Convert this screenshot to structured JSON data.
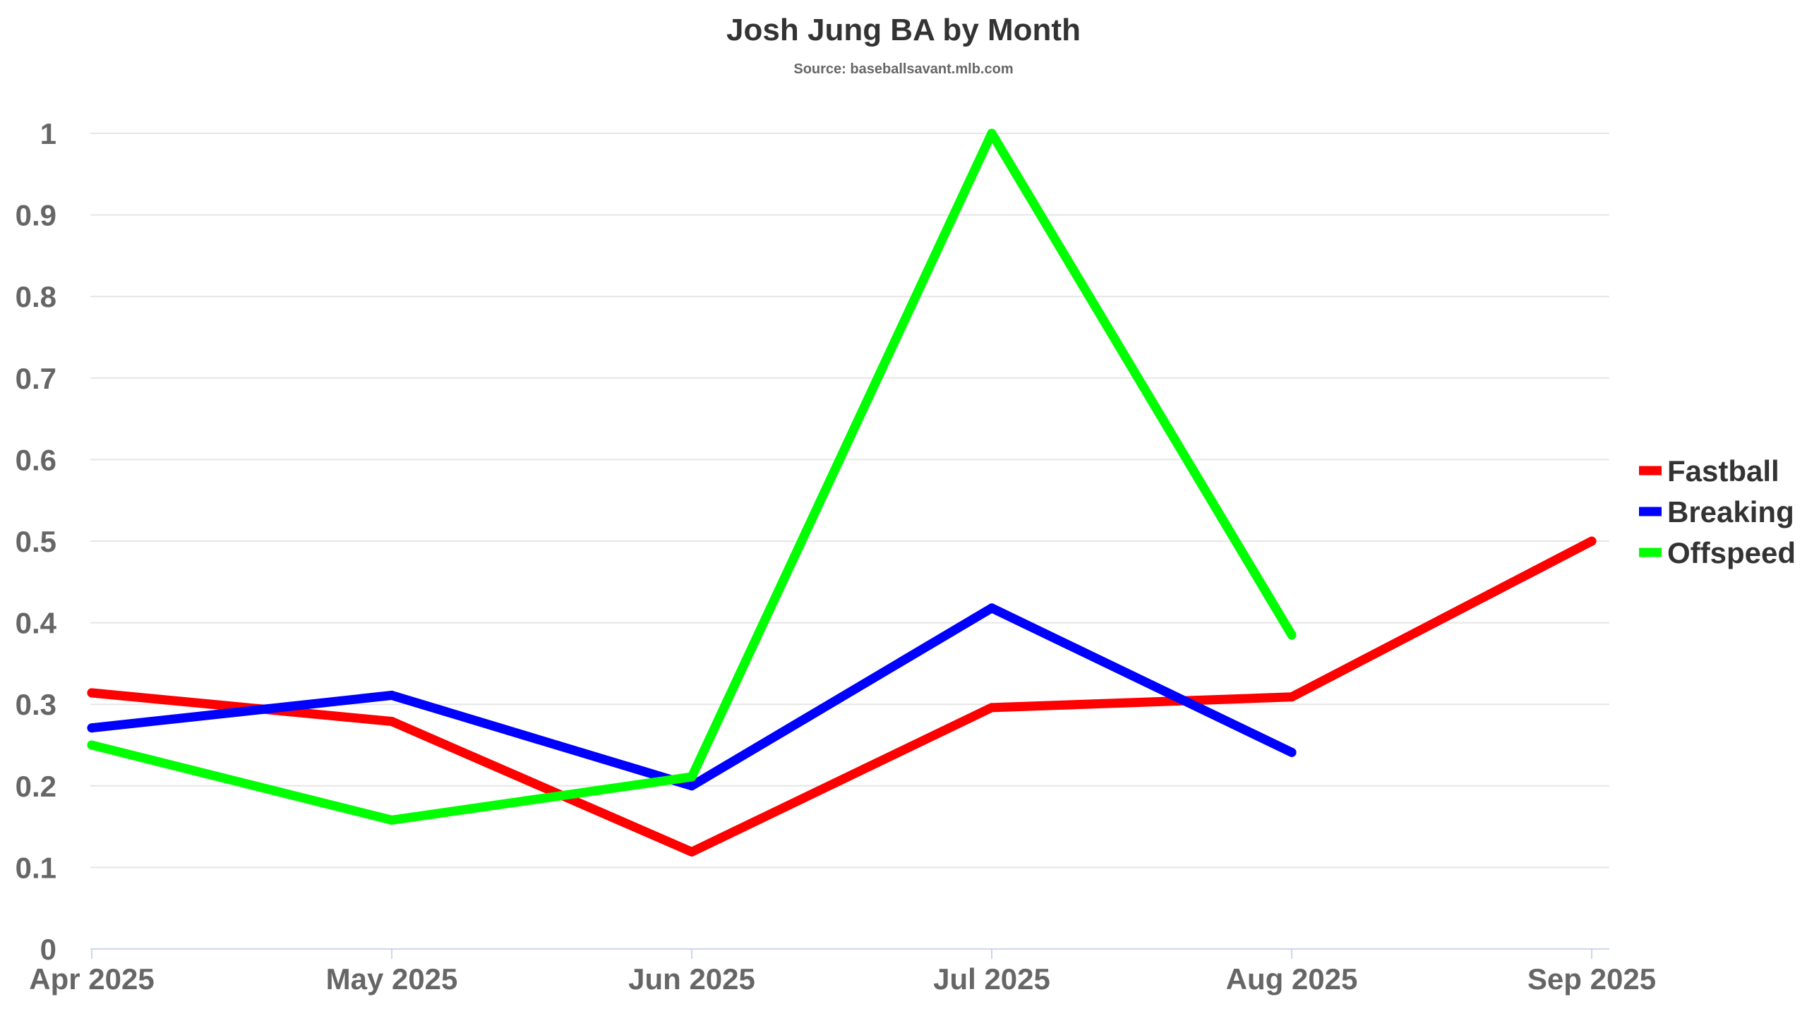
{
  "chart_data": {
    "type": "line",
    "title": "Josh Jung BA by Month",
    "subtitle": "Source: baseballsavant.mlb.com",
    "xlabel": "",
    "ylabel": "",
    "categories": [
      "Apr 2025",
      "May 2025",
      "Jun 2025",
      "Jul 2025",
      "Aug 2025",
      "Sep 2025"
    ],
    "ylim": [
      0,
      1
    ],
    "yticks": [
      "0",
      "0.1",
      "0.2",
      "0.3",
      "0.4",
      "0.5",
      "0.6",
      "0.7",
      "0.8",
      "0.9",
      "1"
    ],
    "grid": true,
    "legend_position": "right",
    "series": [
      {
        "name": "Fastball",
        "color": "#ff0000",
        "values": [
          0.314,
          0.279,
          0.119,
          0.296,
          0.309,
          0.5
        ]
      },
      {
        "name": "Breaking",
        "color": "#0000ff",
        "values": [
          0.271,
          0.311,
          0.2,
          0.418,
          0.241,
          null
        ]
      },
      {
        "name": "Offspeed",
        "color": "#00ff00",
        "values": [
          0.25,
          0.158,
          0.211,
          1.0,
          0.385,
          null
        ]
      }
    ]
  }
}
